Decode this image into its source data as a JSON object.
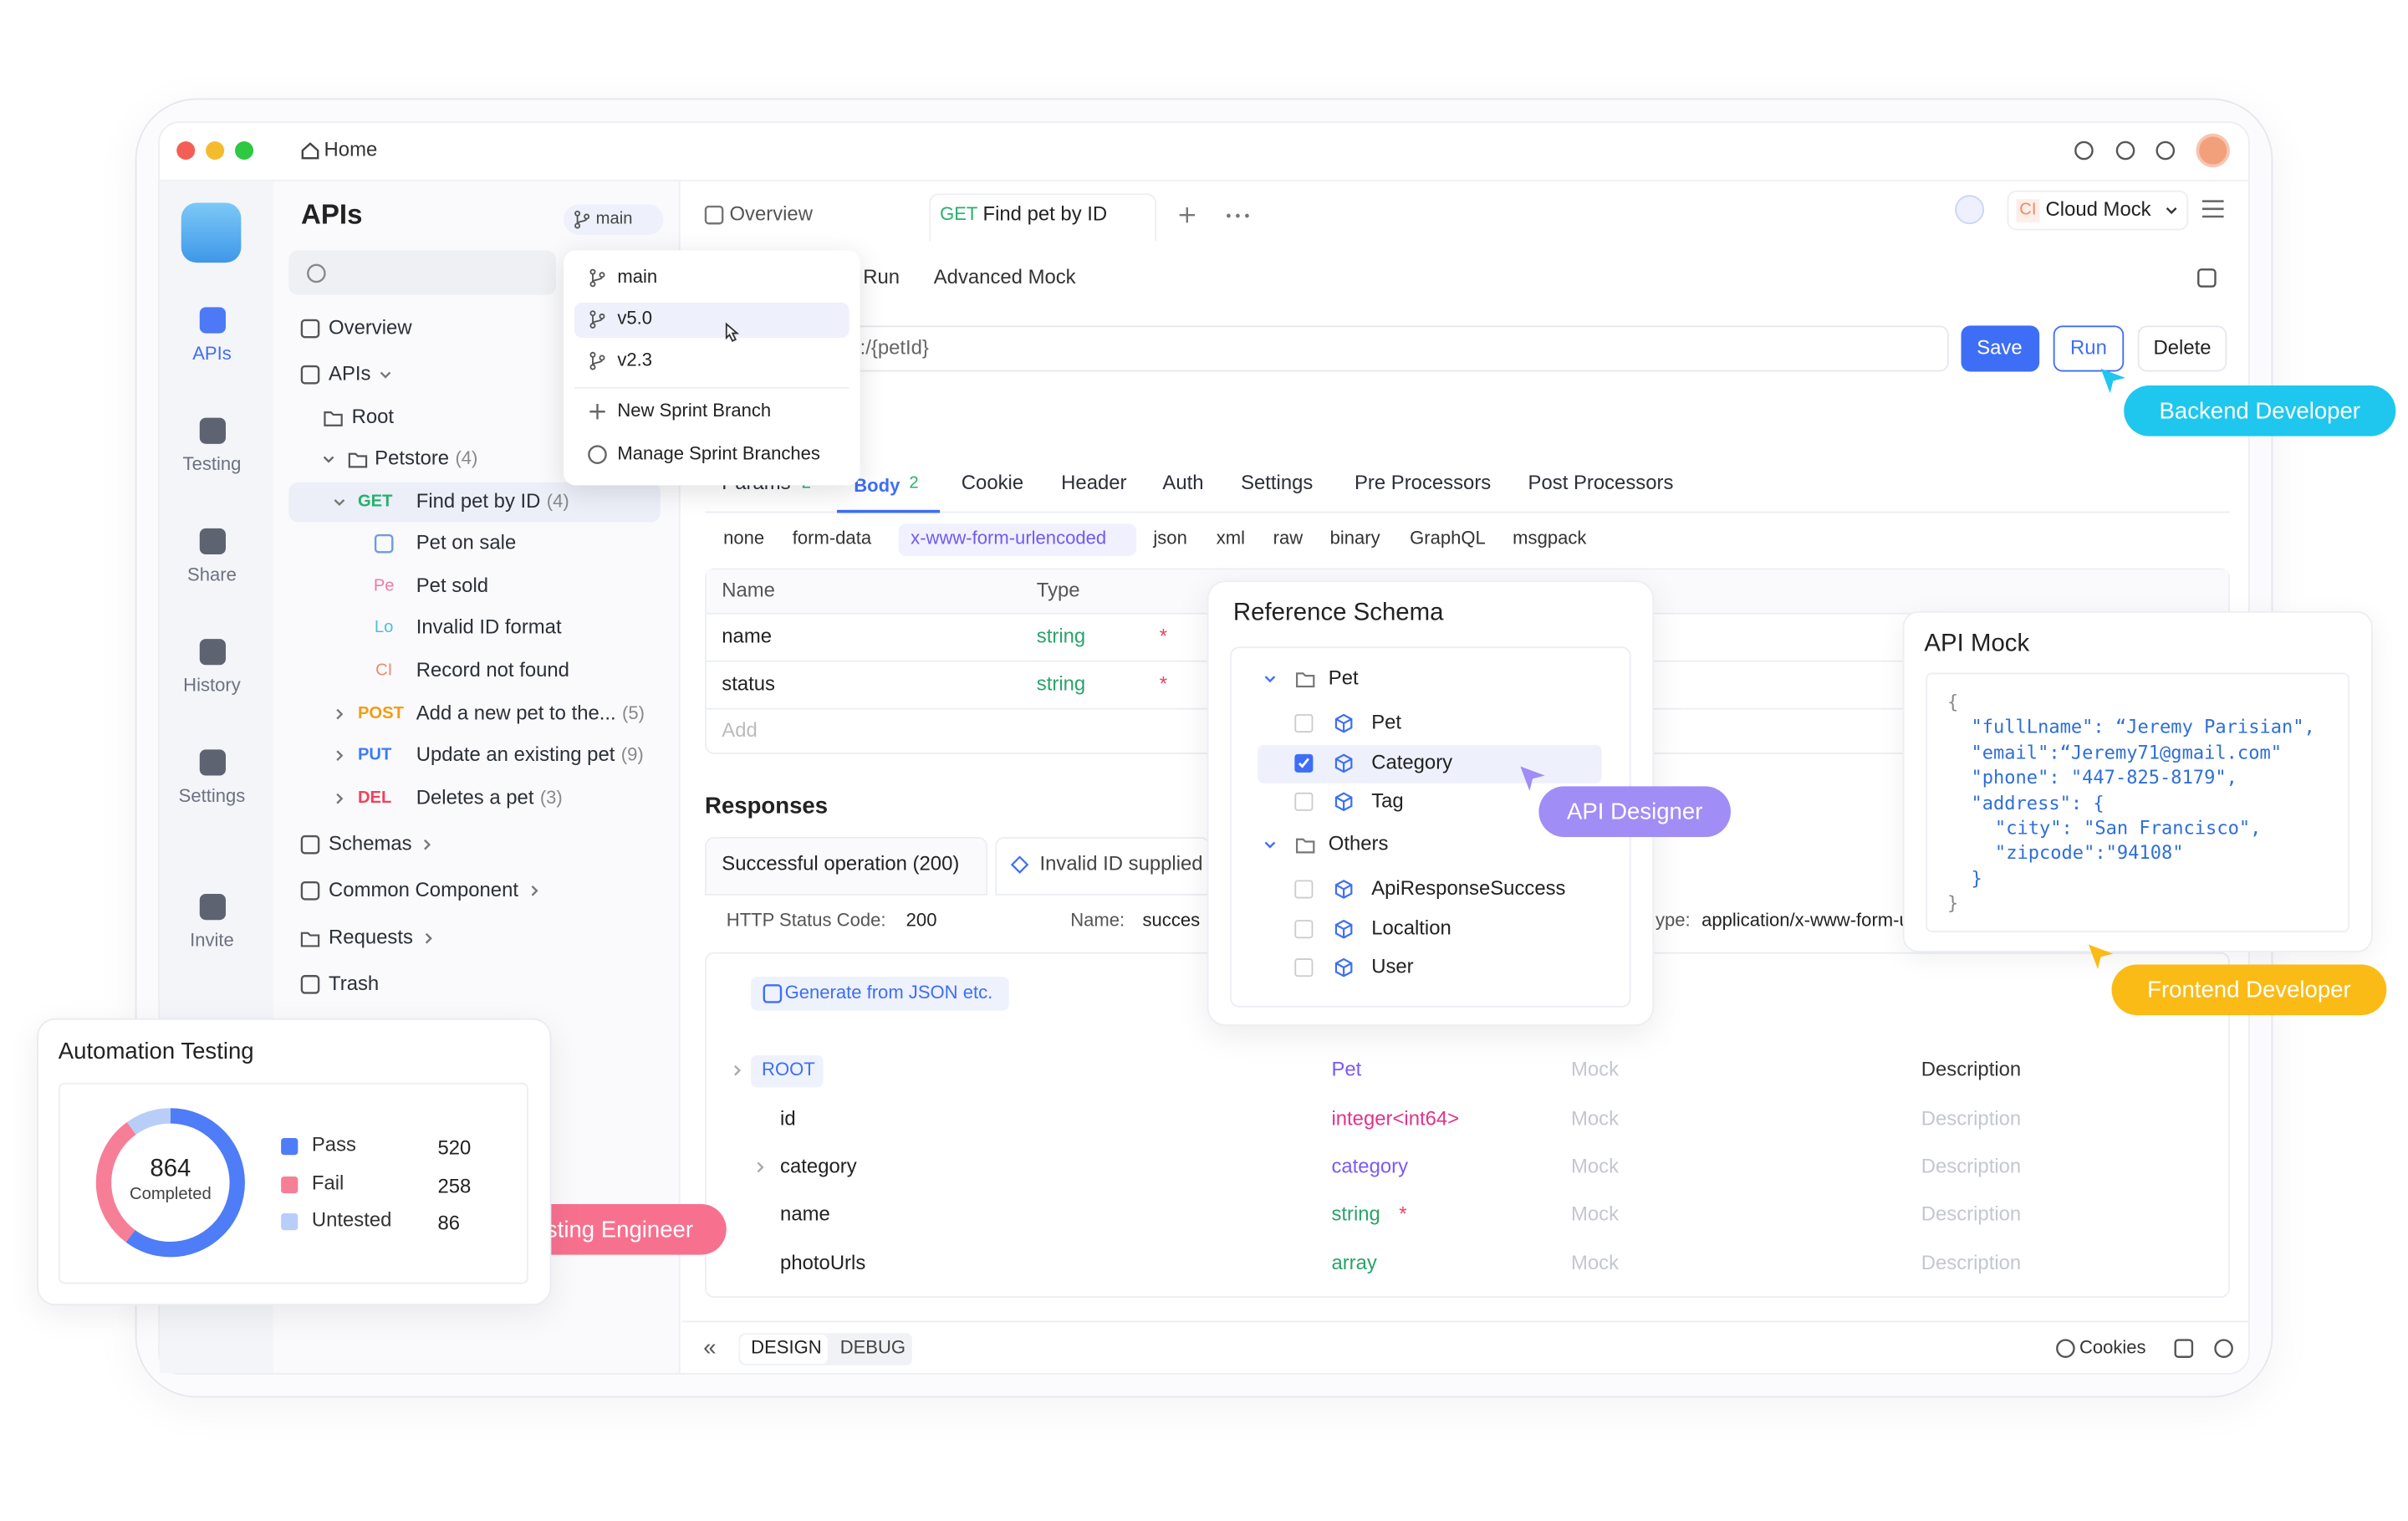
{
  "window": {
    "home": "Home"
  },
  "nav": [
    "APIs",
    "Testing",
    "Share",
    "History",
    "Settings",
    "Invite"
  ],
  "apis": {
    "title": "APIs",
    "branch": "main",
    "tree": [
      {
        "label": "Overview"
      },
      {
        "label": "APIs"
      },
      {
        "label": "Root"
      },
      {
        "label": "Petstore",
        "count": "(4)"
      },
      {
        "method": "GET",
        "label": "Find pet by ID",
        "count": "(4)"
      },
      {
        "label": "Pet on sale"
      },
      {
        "badge": "Pe",
        "label": "Pet sold"
      },
      {
        "badge": "Lo",
        "label": "Invalid ID format"
      },
      {
        "badge": "CI",
        "label": "Record not found"
      },
      {
        "method": "POST",
        "label": "Add a new pet to the...",
        "count": "(5)"
      },
      {
        "method": "PUT",
        "label": "Update an existing pet",
        "count": "(9)"
      },
      {
        "method": "DEL",
        "label": "Deletes a pet",
        "count": "(3)"
      },
      {
        "label": "Schemas"
      },
      {
        "label": "Common Component"
      },
      {
        "label": "Requests"
      },
      {
        "label": "Trash"
      }
    ]
  },
  "branch_menu": {
    "branches": [
      "main",
      "v5.0",
      "v2.3"
    ],
    "actions": [
      "New Sprint Branch",
      "Manage Sprint Branches"
    ]
  },
  "tabs": {
    "overview": "Overview",
    "active_method": "GET",
    "active": "Find pet by ID"
  },
  "environment": {
    "badge": "CI",
    "name": "Cloud Mock"
  },
  "subtabs": [
    "Run",
    "Advanced Mock"
  ],
  "request": {
    "url": ":/{petId}",
    "buttons": [
      "Save",
      "Run",
      "Delete"
    ]
  },
  "param_tabs": [
    {
      "label": "Params",
      "count": "2"
    },
    {
      "label": "Body",
      "count": "2"
    },
    {
      "label": "Cookie"
    },
    {
      "label": "Header"
    },
    {
      "label": "Auth"
    },
    {
      "label": "Settings"
    },
    {
      "label": "Pre Processors"
    },
    {
      "label": "Post Processors"
    }
  ],
  "body_types": [
    "none",
    "form-data",
    "x-www-form-urlencoded",
    "json",
    "xml",
    "raw",
    "binary",
    "GraphQL",
    "msgpack"
  ],
  "params": {
    "headers": [
      "Name",
      "Type"
    ],
    "rows": [
      {
        "name": "name",
        "type": "string",
        "required": "*"
      },
      {
        "name": "status",
        "type": "string",
        "required": "*"
      }
    ],
    "add": "Add"
  },
  "responses": {
    "title": "Responses",
    "tabs": [
      "Successful operation (200)",
      "Invalid ID supplied"
    ],
    "status_label": "HTTP Status Code:",
    "status": "200",
    "name_label": "Name:",
    "name": "succes",
    "type_label": "ype:",
    "type": "application/x-www-form-u",
    "generate": "Generate from JSON etc.",
    "schema": [
      {
        "name": "ROOT",
        "type": "Pet",
        "mock": "Mock",
        "description": "Description"
      },
      {
        "name": "id",
        "type": "integer<int64>",
        "mock": "Mock",
        "description": "Description"
      },
      {
        "name": "category",
        "type": "category",
        "mock": "Mock",
        "description": "Description"
      },
      {
        "name": "name",
        "type": "string",
        "required": "*",
        "mock": "Mock",
        "description": "Description"
      },
      {
        "name": "photoUrls",
        "type": "array",
        "mock": "Mock",
        "description": "Description"
      }
    ]
  },
  "footer": {
    "collapse": "«",
    "modes": [
      "DESIGN",
      "DEBUG"
    ],
    "cookies": "Cookies"
  },
  "reference_schema": {
    "title": "Reference Schema",
    "groups": [
      {
        "name": "Pet",
        "items": [
          {
            "label": "Pet",
            "checked": false
          },
          {
            "label": "Category",
            "checked": true
          },
          {
            "label": "Tag",
            "checked": false
          }
        ]
      },
      {
        "name": "Others",
        "items": [
          {
            "label": "ApiResponseSuccess",
            "checked": false
          },
          {
            "label": "Localtion",
            "checked": false
          },
          {
            "label": "User",
            "checked": false
          }
        ]
      }
    ]
  },
  "api_mock": {
    "title": "API Mock",
    "lines": [
      "{",
      "\"fullLname\": “Jeremy Parisian\",",
      "\"email\":“Jeremy71@gmail.com\"",
      "\"phone\": \"447-825-8179\",",
      "\"address\": {",
      "\"city\": \"San Francisco\",",
      "\"zipcode\":\"94108\"",
      "}",
      "}"
    ]
  },
  "roles": {
    "backend": "Backend Developer",
    "designer": "API Designer",
    "frontend": "Frontend Developer",
    "tester": "Testing Engineer"
  },
  "automation": {
    "title": "Automation Testing",
    "chart_data": {
      "type": "donut",
      "total": 864,
      "total_label": "Completed",
      "categories": [
        "Pass",
        "Fail",
        "Untested"
      ],
      "values": [
        520,
        258,
        86
      ],
      "colors": [
        "#4f7cf7",
        "#f77e97",
        "#b9cdf9"
      ]
    }
  }
}
